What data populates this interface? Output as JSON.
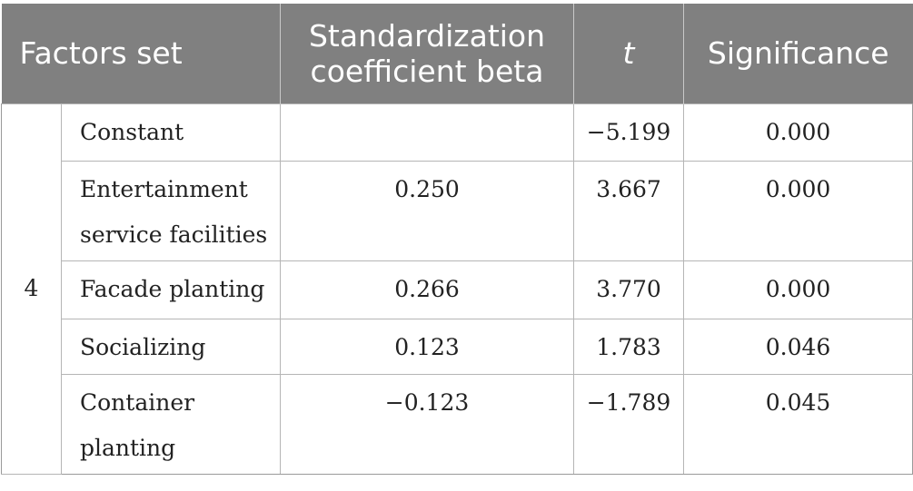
{
  "header": {
    "col_factors": "Factors set",
    "col_beta": "Standardization coefficient beta",
    "col_t": "t",
    "col_sig": "Significance"
  },
  "model": "4",
  "rows": [
    {
      "factor": "Constant",
      "beta": "",
      "t": "−5.199",
      "sig": "0.000"
    },
    {
      "factor": "Entertainment service facilities",
      "beta": "0.250",
      "t": "3.667",
      "sig": "0.000"
    },
    {
      "factor": "Facade planting",
      "beta": "0.266",
      "t": "3.770",
      "sig": "0.000"
    },
    {
      "factor": "Socializing",
      "beta": "0.123",
      "t": "1.783",
      "sig": "0.046"
    },
    {
      "factor": "Container planting",
      "beta": "−0.123",
      "t": "−1.789",
      "sig": "0.045"
    }
  ]
}
